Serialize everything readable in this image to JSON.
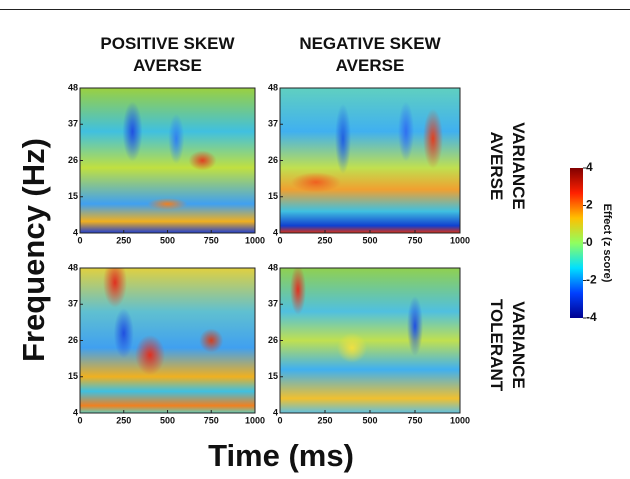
{
  "figure": {
    "column_titles": [
      "POSITIVE SKEW AVERSE",
      "NEGATIVE SKEW AVERSE"
    ],
    "row_titles": [
      "VARIANCE AVERSE",
      "VARIANCE TOLERANT"
    ],
    "x_label": "Time (ms)",
    "y_label": "Frequency (Hz)",
    "colorbar": {
      "label": "Effect (z score)",
      "lim": [
        -4,
        4
      ],
      "ticks": [
        -4,
        -2,
        0,
        2,
        4
      ]
    }
  },
  "chart_data": [
    {
      "type": "heatmap",
      "xlim": [
        0,
        1000
      ],
      "ylim": [
        4,
        48
      ],
      "xticks": [
        0,
        250,
        500,
        750,
        1000
      ],
      "yticks": [
        4,
        15,
        26,
        37,
        48
      ]
    },
    {
      "type": "heatmap",
      "xlim": [
        0,
        1000
      ],
      "ylim": [
        4,
        48
      ],
      "xticks": [
        0,
        250,
        500,
        750,
        1000
      ],
      "yticks": [
        4,
        15,
        26,
        37,
        48
      ]
    },
    {
      "type": "heatmap",
      "xlim": [
        0,
        1000
      ],
      "ylim": [
        4,
        48
      ],
      "xticks": [
        0,
        250,
        500,
        750,
        1000
      ],
      "yticks": [
        4,
        15,
        26,
        37,
        48
      ]
    },
    {
      "type": "heatmap",
      "xlim": [
        0,
        1000
      ],
      "ylim": [
        4,
        48
      ],
      "xticks": [
        0,
        250,
        500,
        750,
        1000
      ],
      "yticks": [
        4,
        15,
        26,
        37,
        48
      ]
    }
  ]
}
